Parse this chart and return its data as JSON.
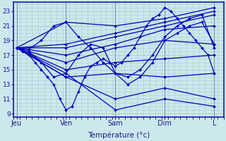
{
  "xlabel": "Température (°c)",
  "bg_color": "#cce8ec",
  "grid_color": "#aaccd4",
  "line_color": "#0000bb",
  "marker": "D",
  "marker_size": 2,
  "marker_lw": 0.3,
  "line_width": 0.9,
  "ylim": [
    8.5,
    24.2
  ],
  "yticks": [
    9,
    11,
    13,
    15,
    17,
    19,
    21,
    23
  ],
  "xtick_labels": [
    "Jeu",
    "Ven",
    "Sam",
    "Dim",
    "L"
  ],
  "x_positions": [
    0,
    8,
    16,
    24,
    32
  ],
  "xlim": [
    -0.5,
    33.5
  ],
  "detail_series": [
    {
      "x": [
        0,
        1,
        2,
        3,
        4,
        5,
        6,
        7,
        8,
        9,
        10,
        11,
        12,
        13,
        14,
        15,
        16,
        17,
        18,
        19,
        20,
        21,
        22,
        23,
        24,
        25,
        26,
        27,
        28,
        29,
        30,
        31,
        32
      ],
      "y": [
        18,
        17.5,
        17,
        16,
        15,
        14,
        13,
        11,
        9.5,
        10,
        12,
        14,
        15.5,
        16,
        16.5,
        16,
        15.5,
        16,
        17,
        18,
        19.5,
        21,
        22,
        22.5,
        23.5,
        23,
        22,
        21,
        20,
        19,
        18,
        17,
        14.5
      ]
    },
    {
      "x": [
        0,
        2,
        4,
        6,
        8,
        10,
        12,
        14,
        16,
        18,
        20,
        22,
        24,
        26,
        28,
        30,
        32
      ],
      "y": [
        18,
        17.5,
        16,
        14,
        14.5,
        17,
        18.5,
        18,
        14.5,
        14,
        15,
        17,
        19.5,
        21,
        22,
        22.5,
        18
      ]
    },
    {
      "x": [
        0,
        2,
        4,
        6,
        8,
        10,
        12,
        14,
        16,
        18,
        20,
        22,
        24,
        26,
        28,
        30,
        32
      ],
      "y": [
        18,
        17.8,
        19,
        21,
        21.5,
        19.5,
        18,
        16,
        14.5,
        13,
        14,
        16,
        19,
        20,
        21,
        21.5,
        18.5
      ]
    },
    {
      "x": [
        0,
        8,
        16,
        24,
        32
      ],
      "y": [
        18,
        14.5,
        9.5,
        11,
        10
      ]
    },
    {
      "x": [
        0,
        8,
        16,
        24,
        32
      ],
      "y": [
        18,
        14,
        11,
        12.5,
        11
      ]
    },
    {
      "x": [
        0,
        8,
        16,
        24,
        32
      ],
      "y": [
        18,
        14,
        14.5,
        14,
        14.5
      ]
    },
    {
      "x": [
        0,
        8,
        16,
        24,
        32
      ],
      "y": [
        18,
        15,
        16,
        16.5,
        17
      ]
    },
    {
      "x": [
        0,
        8,
        16,
        24,
        32
      ],
      "y": [
        18,
        16,
        18,
        19,
        18.5
      ]
    },
    {
      "x": [
        0,
        8,
        16,
        24,
        32
      ],
      "y": [
        18,
        17,
        18.5,
        20.5,
        21
      ]
    },
    {
      "x": [
        0,
        8,
        16,
        24,
        32
      ],
      "y": [
        18,
        18,
        19.5,
        21,
        22.5
      ]
    },
    {
      "x": [
        0,
        8,
        16,
        24,
        32
      ],
      "y": [
        18,
        18.5,
        20,
        21.5,
        23
      ]
    },
    {
      "x": [
        0,
        8,
        16,
        24,
        32
      ],
      "y": [
        18,
        21.5,
        21,
        22,
        23.5
      ]
    }
  ]
}
